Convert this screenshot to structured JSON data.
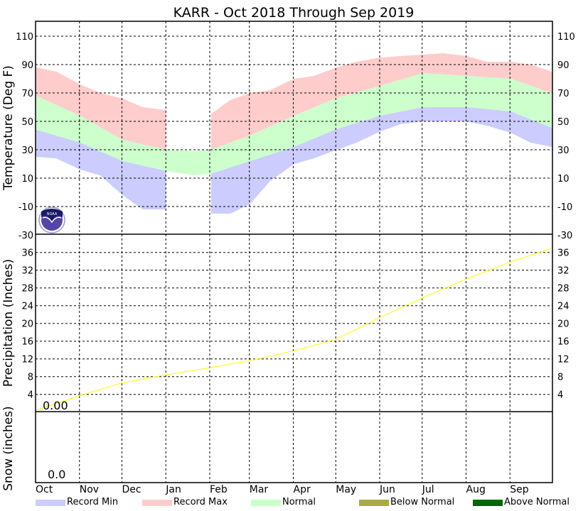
{
  "chart_data": [
    {
      "type": "area",
      "title": "KARR - Oct 2018 Through Sep 2019",
      "ylabel": "Temperature (Deg F)",
      "ylim": [
        -30,
        120
      ],
      "yticks": [
        110,
        90,
        70,
        50,
        30,
        10,
        -10,
        -30
      ],
      "grid": true,
      "normal_high": {
        "dates": [
          "2018-10-01",
          "2018-11-01",
          "2018-12-01",
          "2019-01-01",
          "2019-01-20",
          "2019-02-01",
          "2019-03-01",
          "2019-04-01",
          "2019-05-01",
          "2019-06-01",
          "2019-07-01",
          "2019-08-01",
          "2019-09-01",
          "2019-09-30"
        ],
        "values": [
          68,
          54,
          37,
          30,
          29,
          30,
          40,
          54,
          66.5,
          75,
          84,
          82,
          80,
          70
        ]
      },
      "normal_low": {
        "dates": [
          "2018-10-01",
          "2018-11-01",
          "2018-12-01",
          "2019-01-01",
          "2019-01-20",
          "2019-02-01",
          "2019-03-01",
          "2019-04-01",
          "2019-05-01",
          "2019-06-01",
          "2019-07-01",
          "2019-08-01",
          "2019-09-01",
          "2019-09-30"
        ],
        "values": [
          44,
          35,
          22,
          15,
          12,
          13,
          22,
          32,
          44.5,
          54,
          60,
          60,
          57,
          45.5
        ]
      },
      "record_max": {
        "dates": [
          "2018-10-01",
          "2018-10-15",
          "2018-11-01",
          "2018-11-15",
          "2018-12-01",
          "2018-12-15",
          "2018-12-31",
          "2019-02-01",
          "2019-02-15",
          "2019-03-01",
          "2019-03-15",
          "2019-04-01",
          "2019-04-15",
          "2019-05-01",
          "2019-05-15",
          "2019-06-01",
          "2019-06-15",
          "2019-07-01",
          "2019-07-15",
          "2019-08-01",
          "2019-08-15",
          "2019-09-01",
          "2019-09-15",
          "2019-09-30"
        ],
        "values": [
          88,
          85,
          76,
          70,
          66,
          60,
          58,
          55,
          65,
          70,
          72,
          80,
          82,
          88,
          92,
          95,
          96,
          97,
          98,
          96,
          92,
          92,
          90,
          85
        ]
      },
      "record_min": {
        "dates": [
          "2018-10-01",
          "2018-10-15",
          "2018-11-01",
          "2018-11-15",
          "2018-12-01",
          "2018-12-15",
          "2018-12-31",
          "2019-02-01",
          "2019-02-15",
          "2019-03-01",
          "2019-03-15",
          "2019-04-01",
          "2019-04-15",
          "2019-05-01",
          "2019-05-15",
          "2019-06-01",
          "2019-06-15",
          "2019-07-01",
          "2019-07-15",
          "2019-08-01",
          "2019-08-15",
          "2019-09-01",
          "2019-09-15",
          "2019-09-30"
        ],
        "values": [
          25,
          24,
          16,
          12,
          -2,
          -12,
          -12,
          -15,
          -15,
          -8,
          8,
          20,
          24,
          30,
          35,
          43,
          48,
          50,
          50,
          50,
          47,
          42,
          35,
          32
        ]
      }
    },
    {
      "type": "line",
      "ylabel": "Precipitation (Inches)",
      "ylim": [
        0,
        40
      ],
      "yticks": [
        36,
        32,
        28,
        24,
        20,
        16,
        12,
        8,
        4
      ],
      "grid": true,
      "observed_total_label": "0.00",
      "normal_cumulative": {
        "dates": [
          "2018-10-01",
          "2018-11-01",
          "2018-12-01",
          "2019-01-01",
          "2019-02-01",
          "2019-03-01",
          "2019-04-01",
          "2019-05-01",
          "2019-06-01",
          "2019-07-01",
          "2019-08-01",
          "2019-09-01",
          "2019-09-30"
        ],
        "values": [
          0.4,
          3.7,
          6.6,
          8.4,
          10.0,
          11.6,
          13.8,
          16.4,
          21.3,
          25.7,
          30.0,
          33.8,
          36.9
        ]
      }
    },
    {
      "type": "bar",
      "ylabel": "Snow (inches)",
      "observed_total_label": "0.0"
    }
  ],
  "x_axis": {
    "months": [
      "Oct",
      "Nov",
      "Dec",
      "Jan",
      "Feb",
      "Mar",
      "Apr",
      "May",
      "Jun",
      "Jul",
      "Aug",
      "Sep"
    ],
    "month_starts": [
      "2018-10-01",
      "2018-11-01",
      "2018-12-01",
      "2019-01-01",
      "2019-02-01",
      "2019-03-01",
      "2019-04-01",
      "2019-05-01",
      "2019-06-01",
      "2019-07-01",
      "2019-08-01",
      "2019-09-01"
    ],
    "end": "2019-10-01"
  },
  "legend": [
    {
      "label": "Record Min",
      "color": "#ccccff"
    },
    {
      "label": "Record Max",
      "color": "#ffcccc"
    },
    {
      "label": "Normal",
      "color": "#ccffcc"
    },
    {
      "label": "Below Normal",
      "color": "#aaaa44"
    },
    {
      "label": "Above Normal",
      "color": "#006600"
    }
  ],
  "colors": {
    "precip_normal": "#ffff00",
    "grid": "#000000"
  },
  "logo": {
    "text": "NOAA"
  }
}
